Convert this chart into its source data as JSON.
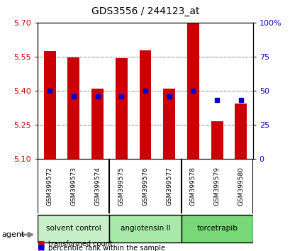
{
  "title": "GDS3556 / 244123_at",
  "samples": [
    "GSM399572",
    "GSM399573",
    "GSM399574",
    "GSM399575",
    "GSM399576",
    "GSM399577",
    "GSM399578",
    "GSM399579",
    "GSM399580"
  ],
  "red_values": [
    5.575,
    5.548,
    5.41,
    5.543,
    5.578,
    5.41,
    5.7,
    5.265,
    5.345
  ],
  "blue_values": [
    50,
    46,
    46,
    46,
    50,
    46,
    50,
    43,
    43
  ],
  "ylim_left": [
    5.1,
    5.7
  ],
  "yticks_left": [
    5.1,
    5.25,
    5.4,
    5.55,
    5.7
  ],
  "ylim_right": [
    0,
    100
  ],
  "yticks_right": [
    0,
    25,
    50,
    75,
    100
  ],
  "groups": [
    {
      "label": "solvent control",
      "indices": [
        0,
        1,
        2
      ],
      "color": "#c8f0c8"
    },
    {
      "label": "angiotensin II",
      "indices": [
        3,
        4,
        5
      ],
      "color": "#a8e8a8"
    },
    {
      "label": "torcetrapib",
      "indices": [
        6,
        7,
        8
      ],
      "color": "#78d878"
    }
  ],
  "bar_color": "#cc0000",
  "dot_color": "#0000cc",
  "bar_width": 0.5,
  "base_value": 5.1,
  "agent_label": "agent",
  "legend_red": "transformed count",
  "legend_blue": "percentile rank within the sample",
  "bg_color": "#ffffff",
  "plot_bg": "#ffffff",
  "grid_color": "#000000",
  "tick_label_color_left": "#cc0000",
  "tick_label_color_right": "#0000cc"
}
